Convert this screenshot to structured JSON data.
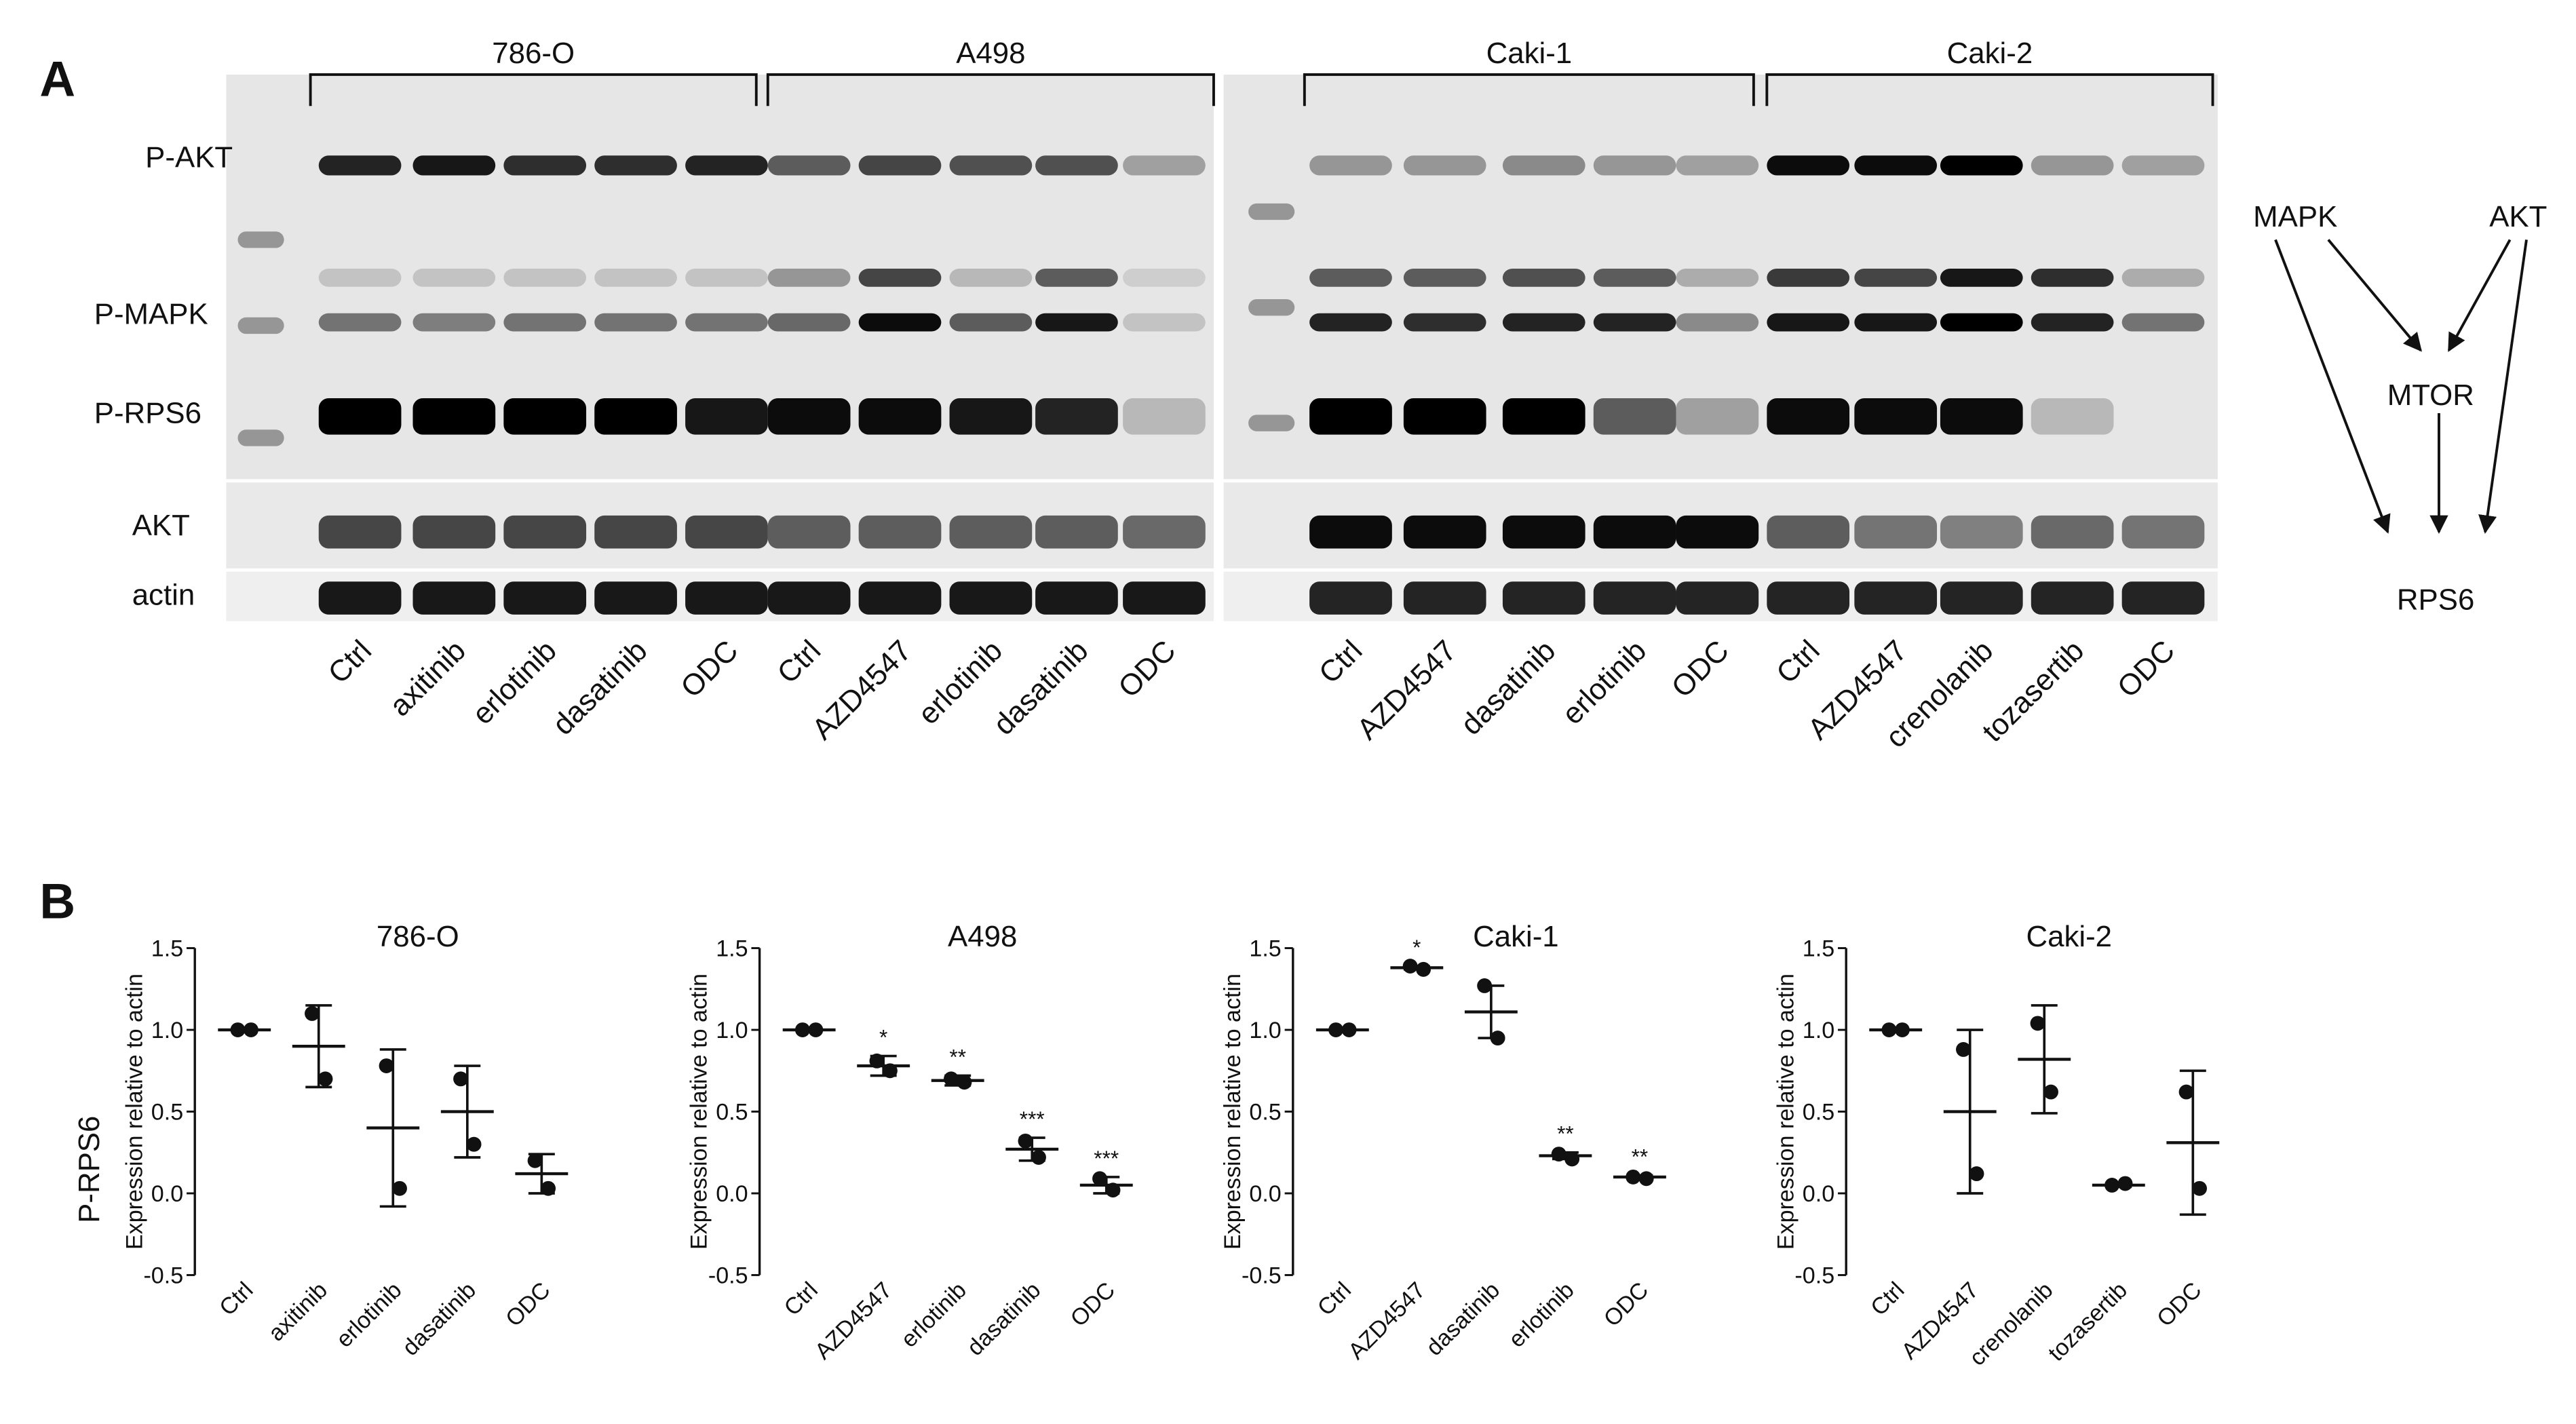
{
  "panel_a": {
    "label": "A",
    "groups": [
      {
        "name": "786-O",
        "lanes": [
          "Ctrl",
          "axitinib",
          "erlotinib",
          "dasatinib",
          "ODC"
        ]
      },
      {
        "name": "A498",
        "lanes": [
          "Ctrl",
          "AZD4547",
          "erlotinib",
          "dasatinib",
          "ODC"
        ]
      },
      {
        "name": "Caki-1",
        "lanes": [
          "Ctrl",
          "AZD4547",
          "dasatinib",
          "erlotinib",
          "ODC"
        ]
      },
      {
        "name": "Caki-2",
        "lanes": [
          "Ctrl",
          "AZD4547",
          "crenolanib",
          "tozasertib",
          "ODC"
        ]
      }
    ],
    "rows": [
      "P-AKT",
      "P-MAPK",
      "P-RPS6",
      "AKT",
      "actin"
    ],
    "pathway": {
      "nodes": [
        "MAPK",
        "AKT",
        "MTOR",
        "RPS6"
      ]
    }
  },
  "panel_b": {
    "label": "B",
    "row_label": "P-RPS6"
  },
  "chart_data": [
    {
      "type": "scatter",
      "title": "786-O",
      "ylabel": "Expression relative to actin",
      "categories": [
        "Ctrl",
        "axitinib",
        "erlotinib",
        "dasatinib",
        "ODC"
      ],
      "points": [
        [
          1.0,
          1.0
        ],
        [
          1.1,
          0.7
        ],
        [
          0.78,
          0.03
        ],
        [
          0.7,
          0.3
        ],
        [
          0.2,
          0.03
        ]
      ],
      "mean": [
        1.0,
        0.9,
        0.4,
        0.5,
        0.12
      ],
      "sd": [
        0,
        0.25,
        0.48,
        0.28,
        0.12
      ],
      "significance": [
        null,
        null,
        null,
        null,
        null
      ],
      "ylim": [
        -0.5,
        1.5
      ],
      "yticks": [
        -0.5,
        {
          "value": 0,
          "label": "0.0"
        },
        0.5,
        {
          "value": 1,
          "label": "1.0"
        },
        1.5
      ]
    },
    {
      "type": "scatter",
      "title": "A498",
      "ylabel": "Expression relative to actin",
      "categories": [
        "Ctrl",
        "AZD4547",
        "erlotinib",
        "dasatinib",
        "ODC"
      ],
      "points": [
        [
          1.0,
          1.0
        ],
        [
          0.81,
          0.75
        ],
        [
          0.7,
          0.68
        ],
        [
          0.32,
          0.22
        ],
        [
          0.09,
          0.02
        ]
      ],
      "mean": [
        1.0,
        0.78,
        0.69,
        0.27,
        0.05
      ],
      "sd": [
        0,
        0.06,
        0.03,
        0.07,
        0.05
      ],
      "significance": [
        null,
        "*",
        "**",
        "***",
        "***"
      ],
      "ylim": [
        -0.5,
        1.5
      ],
      "yticks": [
        -0.5,
        {
          "value": 0,
          "label": "0.0"
        },
        0.5,
        {
          "value": 1,
          "label": "1.0"
        },
        1.5
      ]
    },
    {
      "type": "scatter",
      "title": "Caki-1",
      "ylabel": "Expression relative to actin",
      "categories": [
        "Ctrl",
        "AZD4547",
        "dasatinib",
        "erlotinib",
        "ODC"
      ],
      "points": [
        [
          1.0,
          1.0
        ],
        [
          1.39,
          1.37
        ],
        [
          1.27,
          0.95
        ],
        [
          0.24,
          0.21
        ],
        [
          0.1,
          0.09
        ]
      ],
      "mean": [
        1.0,
        1.38,
        1.11,
        0.23,
        0.1
      ],
      "sd": [
        0,
        0.01,
        0.16,
        0.02,
        0.01
      ],
      "significance": [
        null,
        "*",
        null,
        "**",
        "**"
      ],
      "ylim": [
        -0.5,
        1.5
      ],
      "yticks": [
        -0.5,
        {
          "value": 0,
          "label": "0.0"
        },
        0.5,
        {
          "value": 1,
          "label": "1.0"
        },
        1.5
      ]
    },
    {
      "type": "scatter",
      "title": "Caki-2",
      "ylabel": "Expression relative to actin",
      "categories": [
        "Ctrl",
        "AZD4547",
        "crenolanib",
        "tozasertib",
        "ODC"
      ],
      "points": [
        [
          1.0,
          1.0
        ],
        [
          0.88,
          0.12
        ],
        [
          1.04,
          0.62
        ],
        [
          0.05,
          0.06
        ],
        [
          0.62,
          0.03
        ]
      ],
      "mean": [
        1.0,
        0.5,
        0.82,
        0.05,
        0.31
      ],
      "sd": [
        0,
        0.5,
        0.33,
        0.01,
        0.44
      ],
      "significance": [
        null,
        null,
        null,
        null,
        null
      ],
      "ylim": [
        -0.5,
        1.5
      ],
      "yticks": [
        -0.5,
        {
          "value": 0,
          "label": "0.0"
        },
        0.5,
        {
          "value": 1,
          "label": "1.0"
        },
        1.5
      ]
    }
  ]
}
